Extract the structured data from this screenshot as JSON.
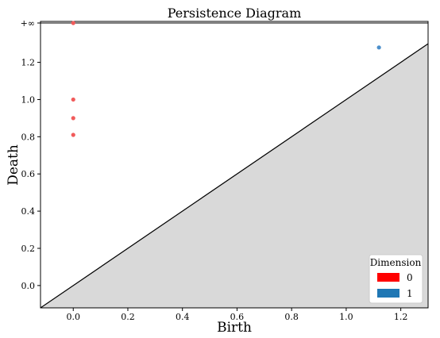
{
  "chart_data": {
    "type": "scatter",
    "title": "Persistence Diagram",
    "xlabel": "Birth",
    "ylabel": "Death",
    "xlim": [
      -0.12,
      1.3
    ],
    "ylim": [
      -0.12,
      1.42
    ],
    "infinity_level": 1.42,
    "infinity_label": "+∞",
    "x_ticks": [
      0.0,
      0.2,
      0.4,
      0.6,
      0.8,
      1.0,
      1.2
    ],
    "x_tick_labels": [
      "0.0",
      "0.2",
      "0.4",
      "0.6",
      "0.8",
      "1.0",
      "1.2"
    ],
    "y_ticks": [
      0.0,
      0.2,
      0.4,
      0.6,
      0.8,
      1.0,
      1.2
    ],
    "y_tick_labels": [
      "0.0",
      "0.2",
      "0.4",
      "0.6",
      "0.8",
      "1.0",
      "1.2"
    ],
    "diagonal": true,
    "shaded_region": "below-diagonal",
    "grid": false,
    "legend": {
      "title": "Dimension",
      "placement": "bottom-right",
      "entries": [
        {
          "label": "0",
          "color": "#ff0000"
        },
        {
          "label": "1",
          "color": "#1f77b4"
        }
      ]
    },
    "series": [
      {
        "dimension": "0",
        "color": "#f15b5b",
        "points": [
          {
            "x": 0.0,
            "y": 0.81
          },
          {
            "x": 0.0,
            "y": 0.9
          },
          {
            "x": 0.0,
            "y": 1.0
          },
          {
            "x": 0.0,
            "y": "inf"
          }
        ]
      },
      {
        "dimension": "1",
        "color": "#4c8fcb",
        "points": [
          {
            "x": 1.12,
            "y": 1.28
          }
        ]
      }
    ],
    "colors": {
      "shade": "#d9d9d9",
      "line": "#000000"
    }
  }
}
